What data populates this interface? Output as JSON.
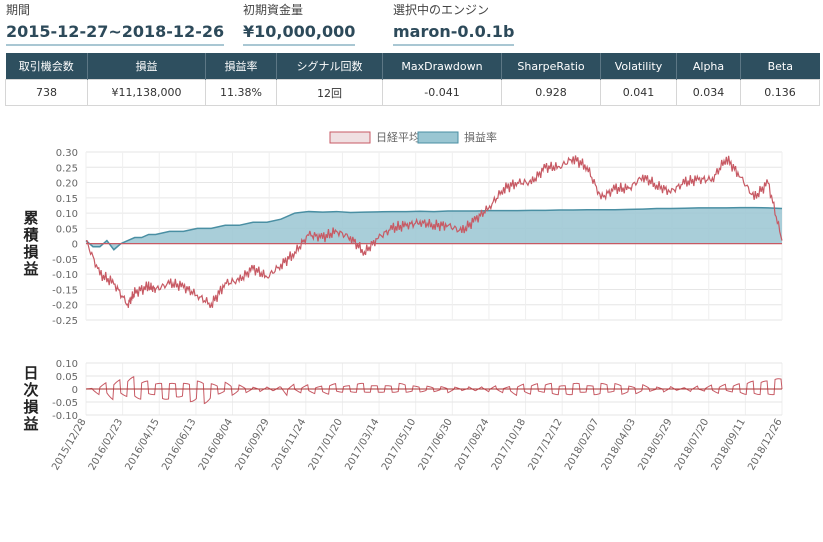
{
  "summary": {
    "period_label": "期間",
    "period_value": "2015-12-27~2018-12-26",
    "capital_label": "初期資金量",
    "capital_value": "¥10,000,000",
    "engine_label": "選択中のエンジン",
    "engine_value": "maron-0.0.1b"
  },
  "stats": {
    "headers": [
      "取引機会数",
      "損益",
      "損益率",
      "シグナル回数",
      "MaxDrawdown",
      "SharpeRatio",
      "Volatility",
      "Alpha",
      "Beta"
    ],
    "values": [
      "738",
      "¥11,138,000",
      "11.38%",
      "12回",
      "-0.041",
      "0.928",
      "0.041",
      "0.034",
      "0.136"
    ]
  },
  "colors": {
    "nikkei_line": "#c75a64",
    "nikkei_fill": "#f0e0e2",
    "pnl_line": "#4a8fa3",
    "pnl_fill": "#9ac6d2",
    "header_bg": "#2e4f5f"
  },
  "chart_data": [
    {
      "type": "area",
      "title": "",
      "ylabel": "累積損益",
      "xlabel": "",
      "ylim": [
        -0.25,
        0.3
      ],
      "yticks": [
        "0.30",
        "0.25",
        "0.20",
        "0.15",
        "0.10",
        "0.05",
        "0",
        "-0.05",
        "-0.10",
        "-0.15",
        "-0.20",
        "-0.25"
      ],
      "ytick_values": [
        0.3,
        0.25,
        0.2,
        0.15,
        0.1,
        0.05,
        0,
        -0.05,
        -0.1,
        -0.15,
        -0.2,
        -0.25
      ],
      "legend": [
        "日経平均",
        "損益率"
      ],
      "legend_position": "top-center",
      "x_tick_labels": [
        "2015/12/28",
        "2016/02/23",
        "2016/04/15",
        "2016/06/13",
        "2016/08/04",
        "2016/09/29",
        "2016/11/24",
        "2017/01/20",
        "2017/03/14",
        "2017/05/10",
        "2017/06/30",
        "2017/08/24",
        "2017/10/18",
        "2017/12/12",
        "2018/02/07",
        "2018/04/03",
        "2018/05/29",
        "2018/07/20",
        "2018/09/11",
        "2018/12/26"
      ],
      "series": [
        {
          "name": "日経平均",
          "x": [
            0,
            2,
            4,
            6,
            7,
            9,
            10,
            12,
            14,
            16,
            18,
            20,
            22,
            24,
            26,
            28,
            30,
            32,
            34,
            36,
            38,
            40,
            42,
            44,
            46,
            48,
            50,
            52,
            54,
            56,
            58,
            60,
            62,
            64,
            66,
            68,
            70,
            72,
            74,
            76,
            78,
            80,
            82,
            84,
            86,
            88,
            90,
            92,
            94,
            96,
            98,
            100
          ],
          "values": [
            0.01,
            -0.1,
            -0.13,
            -0.2,
            -0.16,
            -0.14,
            -0.15,
            -0.13,
            -0.14,
            -0.17,
            -0.2,
            -0.13,
            -0.12,
            -0.08,
            -0.11,
            -0.07,
            -0.03,
            0.03,
            0.02,
            0.04,
            0.02,
            -0.03,
            0.02,
            0.05,
            0.06,
            0.07,
            0.06,
            0.06,
            0.04,
            0.08,
            0.12,
            0.18,
            0.2,
            0.2,
            0.25,
            0.25,
            0.28,
            0.25,
            0.15,
            0.18,
            0.18,
            0.22,
            0.19,
            0.17,
            0.2,
            0.21,
            0.21,
            0.28,
            0.22,
            0.15,
            0.2,
            0.01
          ]
        },
        {
          "name": "損益率",
          "x": [
            0,
            1,
            2,
            3,
            4,
            5,
            6,
            7,
            8,
            9,
            10,
            12,
            14,
            16,
            18,
            20,
            22,
            24,
            26,
            28,
            30,
            32,
            34,
            36,
            38,
            40,
            42,
            44,
            46,
            48,
            50,
            52,
            54,
            56,
            58,
            60,
            62,
            64,
            66,
            68,
            70,
            72,
            74,
            76,
            78,
            80,
            82,
            84,
            86,
            88,
            90,
            92,
            94,
            96,
            98,
            100
          ],
          "values": [
            0.01,
            -0.01,
            -0.01,
            0.01,
            -0.02,
            0.0,
            0.01,
            0.02,
            0.02,
            0.03,
            0.03,
            0.04,
            0.04,
            0.05,
            0.05,
            0.06,
            0.06,
            0.07,
            0.07,
            0.08,
            0.1,
            0.105,
            0.103,
            0.105,
            0.102,
            0.103,
            0.104,
            0.105,
            0.105,
            0.106,
            0.105,
            0.107,
            0.107,
            0.107,
            0.108,
            0.108,
            0.108,
            0.109,
            0.109,
            0.11,
            0.11,
            0.111,
            0.111,
            0.111,
            0.112,
            0.113,
            0.115,
            0.115,
            0.116,
            0.117,
            0.117,
            0.117,
            0.118,
            0.118,
            0.117,
            0.115
          ]
        }
      ]
    },
    {
      "type": "line",
      "title": "",
      "ylabel": "日次損益",
      "ylim": [
        -0.1,
        0.1
      ],
      "yticks": [
        "0.10",
        "0.05",
        "0",
        "-0.05",
        "-0.10"
      ],
      "ytick_values": [
        0.1,
        0.05,
        0,
        -0.05,
        -0.1
      ],
      "series": [
        {
          "name": "日次損益",
          "x": [
            0,
            1,
            2,
            3,
            4,
            5,
            6,
            7,
            8,
            9,
            10,
            11,
            12,
            13,
            14,
            15,
            16,
            17,
            18,
            19,
            20,
            21,
            22,
            23,
            24,
            25,
            26,
            27,
            28,
            29,
            30,
            31,
            32,
            33,
            34,
            35,
            36,
            37,
            38,
            39,
            40,
            41,
            42,
            43,
            44,
            45,
            46,
            47,
            48,
            49,
            50,
            51,
            52,
            53,
            54,
            55,
            56,
            57,
            58,
            59,
            60,
            61,
            62,
            63,
            64,
            65,
            66,
            67,
            68,
            69,
            70,
            71,
            72,
            73,
            74,
            75,
            76,
            77,
            78,
            79,
            80,
            81,
            82,
            83,
            84,
            85,
            86,
            87,
            88,
            89,
            90,
            91,
            92,
            93,
            94,
            95,
            96,
            97,
            98,
            99,
            100
          ],
          "values": [
            0.0,
            -0.03,
            0.03,
            -0.05,
            0.04,
            -0.03,
            0.05,
            -0.04,
            0.03,
            -0.02,
            0.02,
            -0.04,
            0.02,
            -0.03,
            0.02,
            -0.05,
            0.03,
            -0.06,
            0.02,
            -0.02,
            0.03,
            -0.03,
            0.02,
            -0.02,
            0.01,
            -0.02,
            0.02,
            -0.02,
            0.05,
            -0.03,
            0.02,
            -0.02,
            0.02,
            -0.01,
            0.02,
            -0.02,
            0.01,
            -0.01,
            0.01,
            -0.02,
            0.01,
            -0.01,
            0.01,
            -0.01,
            0.01,
            -0.02,
            0.01,
            -0.01,
            0.01,
            -0.01,
            0.01,
            -0.01,
            0.02,
            -0.01,
            0.01,
            -0.02,
            0.02,
            -0.02,
            0.02,
            -0.02,
            0.01,
            -0.03,
            0.02,
            -0.02,
            0.02,
            -0.01,
            0.02,
            -0.02,
            0.01,
            -0.02,
            0.02,
            -0.01,
            0.01,
            -0.02,
            0.02,
            -0.01,
            0.02,
            -0.02,
            0.01,
            -0.02,
            0.02,
            -0.01,
            0.01,
            -0.02,
            0.02,
            -0.01,
            0.02,
            -0.02,
            0.01,
            -0.02,
            0.02,
            -0.02,
            0.01,
            -0.02,
            0.02,
            -0.03,
            0.02,
            -0.03,
            0.02,
            -0.04,
            0.0
          ]
        }
      ]
    }
  ]
}
